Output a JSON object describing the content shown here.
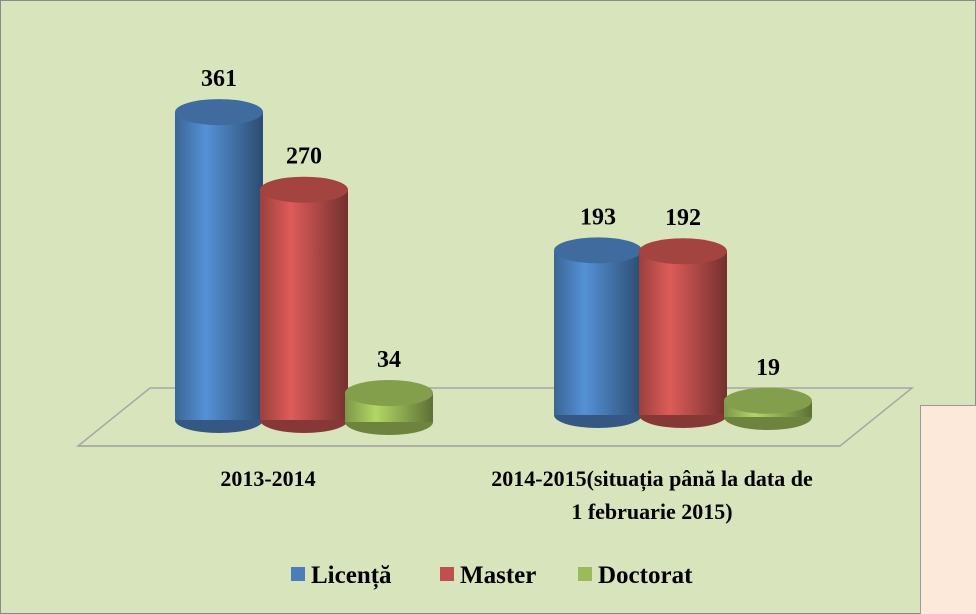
{
  "chart_data": {
    "type": "bar3d",
    "categories": [
      "2013-2014",
      "2014-2015(situația până la data de 1 februarie 2015)"
    ],
    "series": [
      {
        "name": "Licență",
        "color": "#4a7ebb",
        "values": [
          361,
          193
        ]
      },
      {
        "name": "Master",
        "color": "#c0504d",
        "values": [
          270,
          192
        ]
      },
      {
        "name": "Doctorat",
        "color": "#9bbb59",
        "values": [
          34,
          19
        ]
      }
    ],
    "legend": "bottom"
  }
}
